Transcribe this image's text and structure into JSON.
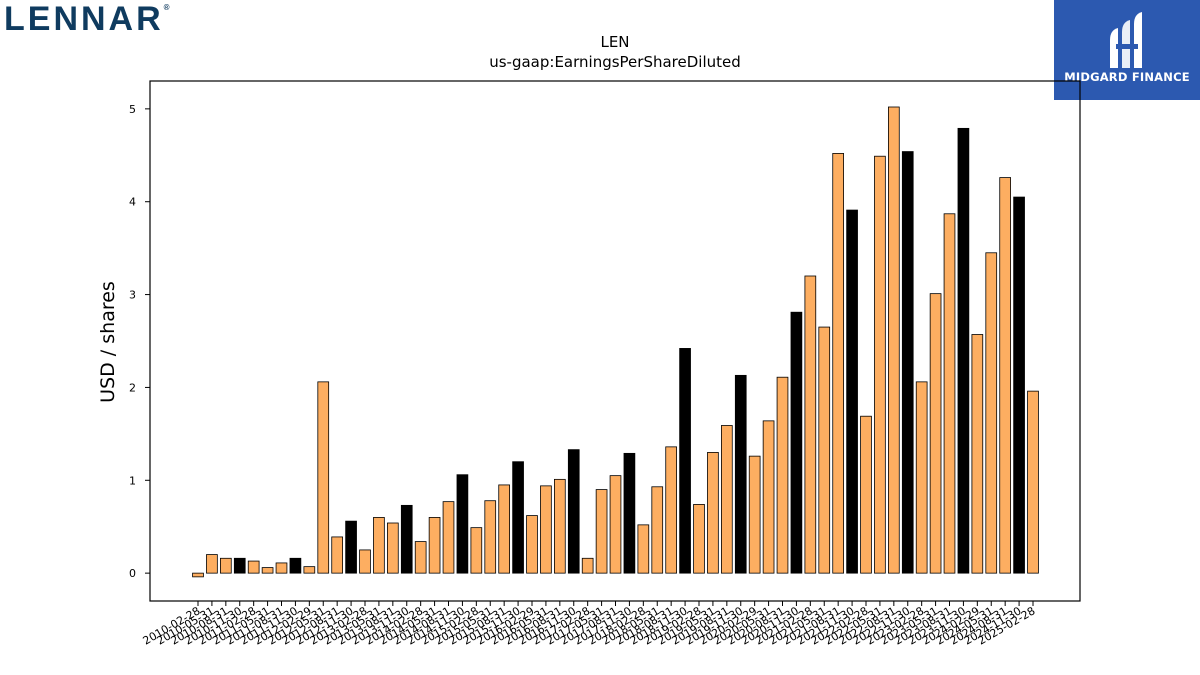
{
  "header": {
    "left_logo_text": "LENNAR",
    "left_logo_mark": "®",
    "right_logo_text": "MIDGARD FINANCE",
    "right_logo_icon": "midgard-mark-icon",
    "right_logo_color": "#2c59b0"
  },
  "chart_data": {
    "type": "bar",
    "title": "LEN",
    "subtitle": "us-gaap:EarningsPerShareDiluted",
    "ylabel": "USD / shares",
    "xlabel": "",
    "ylim": [
      -0.3,
      5.3
    ],
    "yticks": [
      0,
      1,
      2,
      3,
      4,
      5
    ],
    "grid": false,
    "colors": {
      "quarterly": "#fdae61",
      "annual": "#000000"
    },
    "bars": [
      {
        "x": "2010-02-28",
        "value": -0.04,
        "annual": false
      },
      {
        "x": "2010-05-31",
        "value": 0.2,
        "annual": false
      },
      {
        "x": "2010-08-31",
        "value": 0.16,
        "annual": false
      },
      {
        "x": "2010-11-30",
        "value": 0.16,
        "annual": true
      },
      {
        "x": "2011-02-28",
        "value": 0.13,
        "annual": false
      },
      {
        "x": "2011-05-31",
        "value": 0.06,
        "annual": false
      },
      {
        "x": "2011-08-31",
        "value": 0.11,
        "annual": false
      },
      {
        "x": "2011-11-30",
        "value": 0.16,
        "annual": true
      },
      {
        "x": "2012-02-29",
        "value": 0.07,
        "annual": false
      },
      {
        "x": "2012-05-31",
        "value": 2.06,
        "annual": false
      },
      {
        "x": "2012-08-31",
        "value": 0.39,
        "annual": false
      },
      {
        "x": "2012-11-30",
        "value": 0.56,
        "annual": true
      },
      {
        "x": "2013-02-28",
        "value": 0.25,
        "annual": false
      },
      {
        "x": "2013-05-31",
        "value": 0.6,
        "annual": false
      },
      {
        "x": "2013-08-31",
        "value": 0.54,
        "annual": false
      },
      {
        "x": "2013-11-30",
        "value": 0.73,
        "annual": true
      },
      {
        "x": "2014-02-28",
        "value": 0.34,
        "annual": false
      },
      {
        "x": "2014-05-31",
        "value": 0.6,
        "annual": false
      },
      {
        "x": "2014-08-31",
        "value": 0.77,
        "annual": false
      },
      {
        "x": "2014-11-30",
        "value": 1.06,
        "annual": true
      },
      {
        "x": "2015-02-28",
        "value": 0.49,
        "annual": false
      },
      {
        "x": "2015-05-31",
        "value": 0.78,
        "annual": false
      },
      {
        "x": "2015-08-31",
        "value": 0.95,
        "annual": false
      },
      {
        "x": "2015-11-30",
        "value": 1.2,
        "annual": true
      },
      {
        "x": "2016-02-29",
        "value": 0.62,
        "annual": false
      },
      {
        "x": "2016-05-31",
        "value": 0.94,
        "annual": false
      },
      {
        "x": "2016-08-31",
        "value": 1.01,
        "annual": false
      },
      {
        "x": "2016-11-30",
        "value": 1.33,
        "annual": true
      },
      {
        "x": "2017-02-28",
        "value": 0.16,
        "annual": false
      },
      {
        "x": "2017-05-31",
        "value": 0.9,
        "annual": false
      },
      {
        "x": "2017-08-31",
        "value": 1.05,
        "annual": false
      },
      {
        "x": "2017-11-30",
        "value": 1.29,
        "annual": true
      },
      {
        "x": "2018-02-28",
        "value": 0.52,
        "annual": false
      },
      {
        "x": "2018-05-31",
        "value": 0.93,
        "annual": false
      },
      {
        "x": "2018-08-31",
        "value": 1.36,
        "annual": false
      },
      {
        "x": "2018-11-30",
        "value": 2.42,
        "annual": true
      },
      {
        "x": "2019-02-28",
        "value": 0.74,
        "annual": false
      },
      {
        "x": "2019-05-31",
        "value": 1.3,
        "annual": false
      },
      {
        "x": "2019-08-31",
        "value": 1.59,
        "annual": false
      },
      {
        "x": "2019-11-30",
        "value": 2.13,
        "annual": true
      },
      {
        "x": "2020-02-29",
        "value": 1.26,
        "annual": false
      },
      {
        "x": "2020-05-31",
        "value": 1.64,
        "annual": false
      },
      {
        "x": "2020-08-31",
        "value": 2.11,
        "annual": false
      },
      {
        "x": "2020-11-30",
        "value": 2.81,
        "annual": true
      },
      {
        "x": "2021-02-28",
        "value": 3.2,
        "annual": false
      },
      {
        "x": "2021-05-31",
        "value": 2.65,
        "annual": false
      },
      {
        "x": "2021-08-31",
        "value": 4.52,
        "annual": false
      },
      {
        "x": "2021-11-30",
        "value": 3.91,
        "annual": true
      },
      {
        "x": "2022-02-28",
        "value": 1.69,
        "annual": false
      },
      {
        "x": "2022-05-31",
        "value": 4.49,
        "annual": false
      },
      {
        "x": "2022-08-31",
        "value": 5.02,
        "annual": false
      },
      {
        "x": "2022-11-30",
        "value": 4.54,
        "annual": true
      },
      {
        "x": "2023-02-28",
        "value": 2.06,
        "annual": false
      },
      {
        "x": "2023-05-31",
        "value": 3.01,
        "annual": false
      },
      {
        "x": "2023-08-31",
        "value": 3.87,
        "annual": false
      },
      {
        "x": "2023-11-30",
        "value": 4.79,
        "annual": true
      },
      {
        "x": "2024-02-29",
        "value": 2.57,
        "annual": false
      },
      {
        "x": "2024-05-31",
        "value": 3.45,
        "annual": false
      },
      {
        "x": "2024-08-31",
        "value": 4.26,
        "annual": false
      },
      {
        "x": "2024-11-30",
        "value": 4.05,
        "annual": true
      },
      {
        "x": "2025-02-28",
        "value": 1.96,
        "annual": false
      }
    ]
  }
}
